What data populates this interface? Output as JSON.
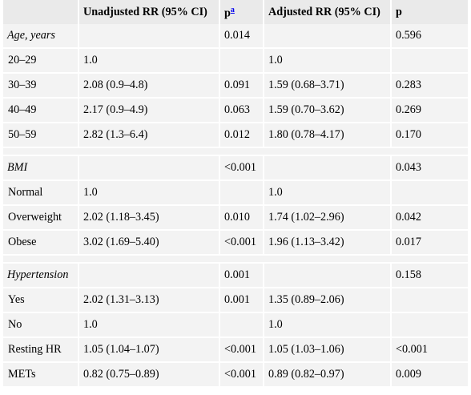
{
  "table": {
    "headers": {
      "variable": "",
      "unadjusted": "Unadjusted RR (95% CI)",
      "p1": "p",
      "p1_note": "a",
      "adjusted": "Adjusted RR (95% CI)",
      "p2": "p"
    },
    "rows": [
      {
        "label": "Age, years",
        "group": true,
        "unadj": "",
        "p1": "0.014",
        "adj": "",
        "p2": "0.596"
      },
      {
        "label": "20–29",
        "group": false,
        "unadj": "1.0",
        "p1": "",
        "adj": "1.0",
        "p2": ""
      },
      {
        "label": "30–39",
        "group": false,
        "unadj": "2.08 (0.9–4.8)",
        "p1": "0.091",
        "adj": "1.59 (0.68–3.71)",
        "p2": "0.283"
      },
      {
        "label": "40–49",
        "group": false,
        "unadj": "2.17 (0.9–4.9)",
        "p1": "0.063",
        "adj": "1.59 (0.70–3.62)",
        "p2": "0.269"
      },
      {
        "label": "50–59",
        "group": false,
        "unadj": "2.82 (1.3–6.4)",
        "p1": "0.012",
        "adj": "1.80 (0.78–4.17)",
        "p2": "0.170"
      },
      {
        "spacer": true
      },
      {
        "label": "BMI",
        "group": true,
        "unadj": "",
        "p1": "<0.001",
        "adj": "",
        "p2": "0.043"
      },
      {
        "label": "Normal",
        "group": false,
        "unadj": "1.0",
        "p1": "",
        "adj": "1.0",
        "p2": ""
      },
      {
        "label": "Overweight",
        "group": false,
        "unadj": "2.02 (1.18–3.45)",
        "p1": "0.010",
        "adj": "1.74 (1.02–2.96)",
        "p2": "0.042"
      },
      {
        "label": "Obese",
        "group": false,
        "unadj": "3.02 (1.69–5.40)",
        "p1": "<0.001",
        "adj": "1.96 (1.13–3.42)",
        "p2": "0.017"
      },
      {
        "spacer": true
      },
      {
        "label": "Hypertension",
        "group": true,
        "unadj": "",
        "p1": "0.001",
        "adj": "",
        "p2": "0.158"
      },
      {
        "label": "Yes",
        "group": false,
        "unadj": "2.02 (1.31–3.13)",
        "p1": "0.001",
        "adj": "1.35 (0.89–2.06)",
        "p2": ""
      },
      {
        "label": "No",
        "group": false,
        "unadj": "1.0",
        "p1": "",
        "adj": "1.0",
        "p2": ""
      },
      {
        "label": "Resting HR",
        "group": false,
        "unadj": "1.05 (1.04–1.07)",
        "p1": "<0.001",
        "adj": "1.05 (1.03–1.06)",
        "p2": "<0.001"
      },
      {
        "label": "METs",
        "group": false,
        "unadj": "0.82 (0.75–0.89)",
        "p1": "<0.001",
        "adj": "0.89 (0.82–0.97)",
        "p2": "0.009"
      }
    ]
  }
}
